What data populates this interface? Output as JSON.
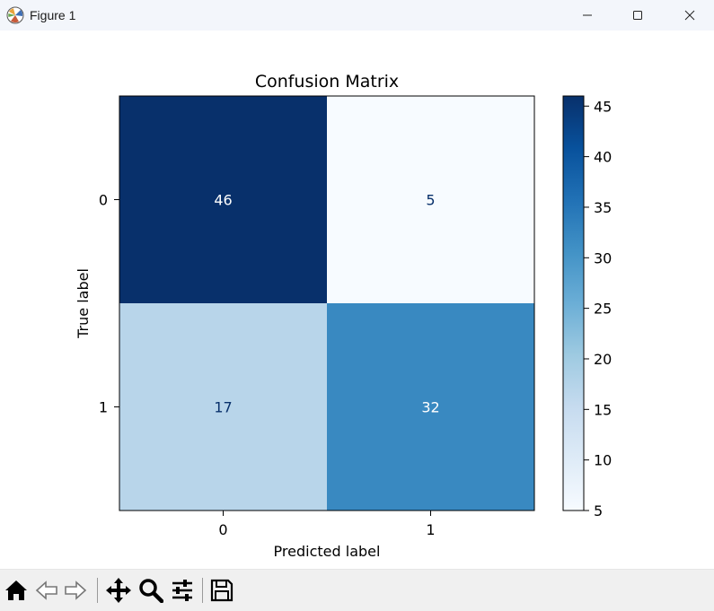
{
  "window": {
    "title": "Figure 1"
  },
  "toolbar": {
    "tools": [
      "home-icon",
      "back-icon",
      "forward-icon",
      "pan-icon",
      "zoom-icon",
      "configure-subplots-icon",
      "save-icon"
    ]
  },
  "chart_data": {
    "type": "heatmap",
    "title": "Confusion Matrix",
    "xlabel": "Predicted label",
    "ylabel": "True label",
    "x_categories": [
      "0",
      "1"
    ],
    "y_categories": [
      "0",
      "1"
    ],
    "matrix": [
      [
        46,
        5
      ],
      [
        17,
        32
      ]
    ],
    "colormap": "Blues",
    "colorbar": {
      "min": 5,
      "max": 46,
      "ticks": [
        5,
        10,
        15,
        20,
        25,
        30,
        35,
        40,
        45
      ]
    },
    "grid": false
  }
}
